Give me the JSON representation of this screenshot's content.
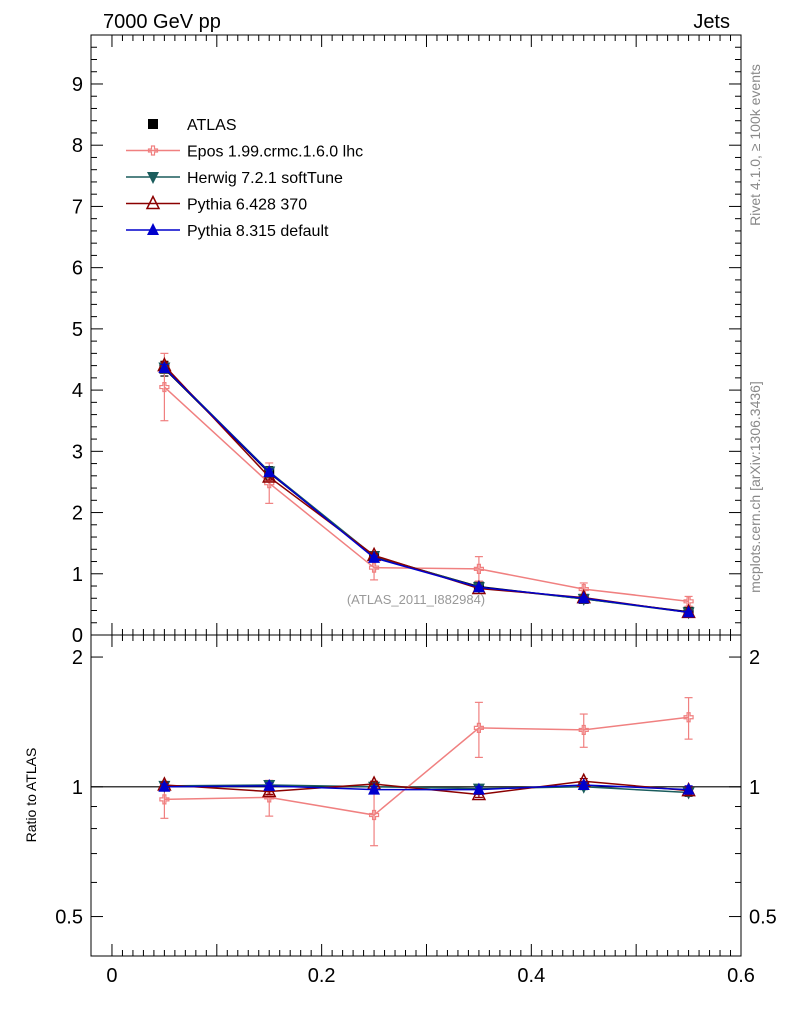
{
  "header": {
    "left": "7000 GeV pp",
    "right": "Jets"
  },
  "side_labels": {
    "rivet": "Rivet 4.1.0, ≥ 100k events",
    "mcplots": "mcplots.cern.ch [arXiv:1306.3436]"
  },
  "chart_data": [
    {
      "type": "line",
      "panel": "main",
      "watermark": "(ATLAS_2011_I882984)",
      "xlim": [
        -0.02,
        0.6
      ],
      "ylim": [
        0,
        9.8
      ],
      "yticks": [
        0,
        1,
        2,
        3,
        4,
        5,
        6,
        7,
        8,
        9
      ],
      "ytick_labels": [
        "0",
        "1",
        "2",
        "3",
        "4",
        "5",
        "6",
        "7",
        "8",
        "9"
      ],
      "x": [
        0.05,
        0.15,
        0.25,
        0.35,
        0.45,
        0.55
      ],
      "series": [
        {
          "name": "ATLAS",
          "color": "#000000",
          "marker": "square",
          "values": [
            4.35,
            2.65,
            1.28,
            0.79,
            0.59,
            0.38
          ],
          "errors": [
            0.12,
            0.1,
            0.05,
            0.04,
            0.03,
            0.03
          ]
        },
        {
          "name": "Epos 1.99.crmc.1.6.0 lhc",
          "color": "#f08080",
          "marker": "open-cross",
          "values": [
            4.05,
            2.48,
            1.1,
            1.08,
            0.75,
            0.55
          ],
          "errors": [
            0.55,
            0.33,
            0.2,
            0.2,
            0.1,
            0.08
          ]
        },
        {
          "name": "Herwig 7.2.1 softTune",
          "color": "#1a5c5c",
          "marker": "triangle-down",
          "values": [
            4.37,
            2.67,
            1.29,
            0.78,
            0.59,
            0.37
          ],
          "errors": [
            0.06,
            0.05,
            0.03,
            0.02,
            0.02,
            0.02
          ]
        },
        {
          "name": "Pythia 6.428 370",
          "color": "#8b0000",
          "marker": "open-triangle",
          "values": [
            4.4,
            2.58,
            1.3,
            0.76,
            0.61,
            0.37
          ],
          "errors": [
            0.06,
            0.05,
            0.03,
            0.02,
            0.02,
            0.02
          ]
        },
        {
          "name": "Pythia 8.315 default",
          "color": "#0000cc",
          "marker": "triangle",
          "values": [
            4.36,
            2.66,
            1.26,
            0.78,
            0.6,
            0.37
          ],
          "errors": [
            0.06,
            0.05,
            0.03,
            0.02,
            0.02,
            0.02
          ]
        }
      ]
    },
    {
      "type": "line",
      "panel": "ratio",
      "ylabel": "Ratio to ATLAS",
      "xlim": [
        -0.02,
        0.6
      ],
      "ylim": [
        0.405,
        2.25
      ],
      "log_y": true,
      "xticks": [
        0,
        0.2,
        0.4,
        0.6
      ],
      "xtick_labels": [
        "0",
        "0.2",
        "0.4",
        "0.6"
      ],
      "yticks": [
        0.5,
        1,
        2
      ],
      "ytick_labels": [
        "0.5",
        "1",
        "2"
      ],
      "x": [
        0.05,
        0.15,
        0.25,
        0.35,
        0.45,
        0.55
      ],
      "series": [
        {
          "name": "ATLAS",
          "color": "#000000",
          "marker": "none",
          "values": [
            1,
            1,
            1,
            1,
            1,
            1
          ],
          "errors": [
            0,
            0,
            0,
            0,
            0,
            0
          ]
        },
        {
          "name": "Epos 1.99.crmc.1.6.0 lhc",
          "color": "#f08080",
          "marker": "open-cross",
          "values": [
            0.935,
            0.945,
            0.86,
            1.37,
            1.355,
            1.45
          ],
          "errors": [
            0.09,
            0.09,
            0.13,
            0.2,
            0.12,
            0.16
          ]
        },
        {
          "name": "Herwig 7.2.1 softTune",
          "color": "#1a5c5c",
          "marker": "triangle-down",
          "values": [
            1.005,
            1.01,
            1.0,
            0.99,
            1.0,
            0.97
          ],
          "errors": [
            0.015,
            0.015,
            0.015,
            0.015,
            0.015,
            0.02
          ]
        },
        {
          "name": "Pythia 6.428 370",
          "color": "#8b0000",
          "marker": "open-triangle",
          "values": [
            1.01,
            0.975,
            1.015,
            0.96,
            1.03,
            0.98
          ],
          "errors": [
            0.015,
            0.015,
            0.015,
            0.015,
            0.015,
            0.02
          ]
        },
        {
          "name": "Pythia 8.315 default",
          "color": "#0000cc",
          "marker": "triangle",
          "values": [
            1.0,
            1.005,
            0.985,
            0.985,
            1.01,
            0.985
          ],
          "errors": [
            0.015,
            0.015,
            0.015,
            0.015,
            0.015,
            0.02
          ]
        }
      ]
    }
  ]
}
